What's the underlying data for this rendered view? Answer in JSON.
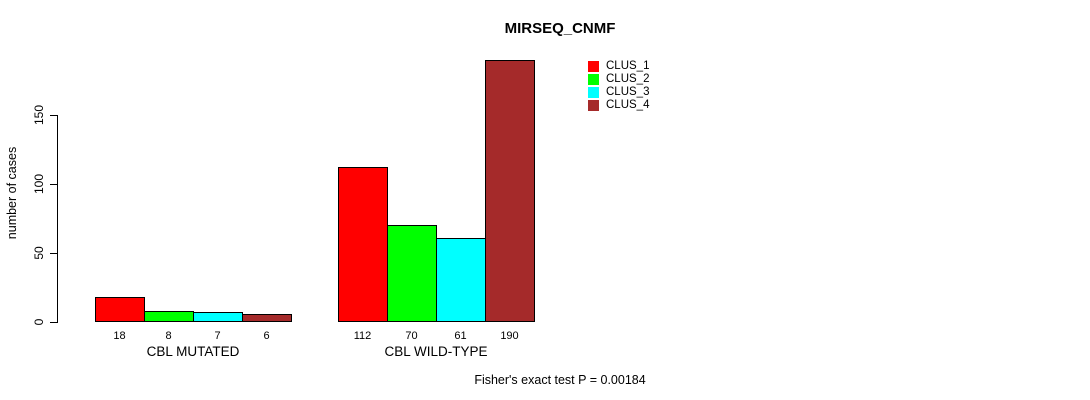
{
  "title": "MIRSEQ_CNMF",
  "y_axis": {
    "label": "number of cases",
    "ticks": [
      0,
      50,
      100,
      150
    ]
  },
  "legend": [
    {
      "label": "CLUS_1",
      "color": "#FF0000"
    },
    {
      "label": "CLUS_2",
      "color": "#00FF00"
    },
    {
      "label": "CLUS_3",
      "color": "#00FFFF"
    },
    {
      "label": "CLUS_4",
      "color": "#A52A2A"
    }
  ],
  "footer": "Fisher's exact test P = 0.00184",
  "chart_data": {
    "type": "bar",
    "title": "MIRSEQ_CNMF",
    "xlabel": "",
    "ylabel": "number of cases",
    "categories": [
      "CBL MUTATED",
      "CBL WILD-TYPE"
    ],
    "series": [
      {
        "name": "CLUS_1",
        "color": "#FF0000",
        "values": [
          18,
          112
        ]
      },
      {
        "name": "CLUS_2",
        "color": "#00FF00",
        "values": [
          8,
          70
        ]
      },
      {
        "name": "CLUS_3",
        "color": "#00FFFF",
        "values": [
          7,
          61
        ]
      },
      {
        "name": "CLUS_4",
        "color": "#A52A2A",
        "values": [
          6,
          190
        ]
      }
    ],
    "bar_labels": [
      [
        18,
        8,
        7,
        6
      ],
      [
        112,
        70,
        61,
        190
      ]
    ],
    "yticks": [
      0,
      50,
      100,
      150
    ],
    "ylim": [
      0,
      190
    ],
    "grid": false,
    "legend_position": "top-right",
    "annotation": "Fisher's exact test P = 0.00184"
  }
}
